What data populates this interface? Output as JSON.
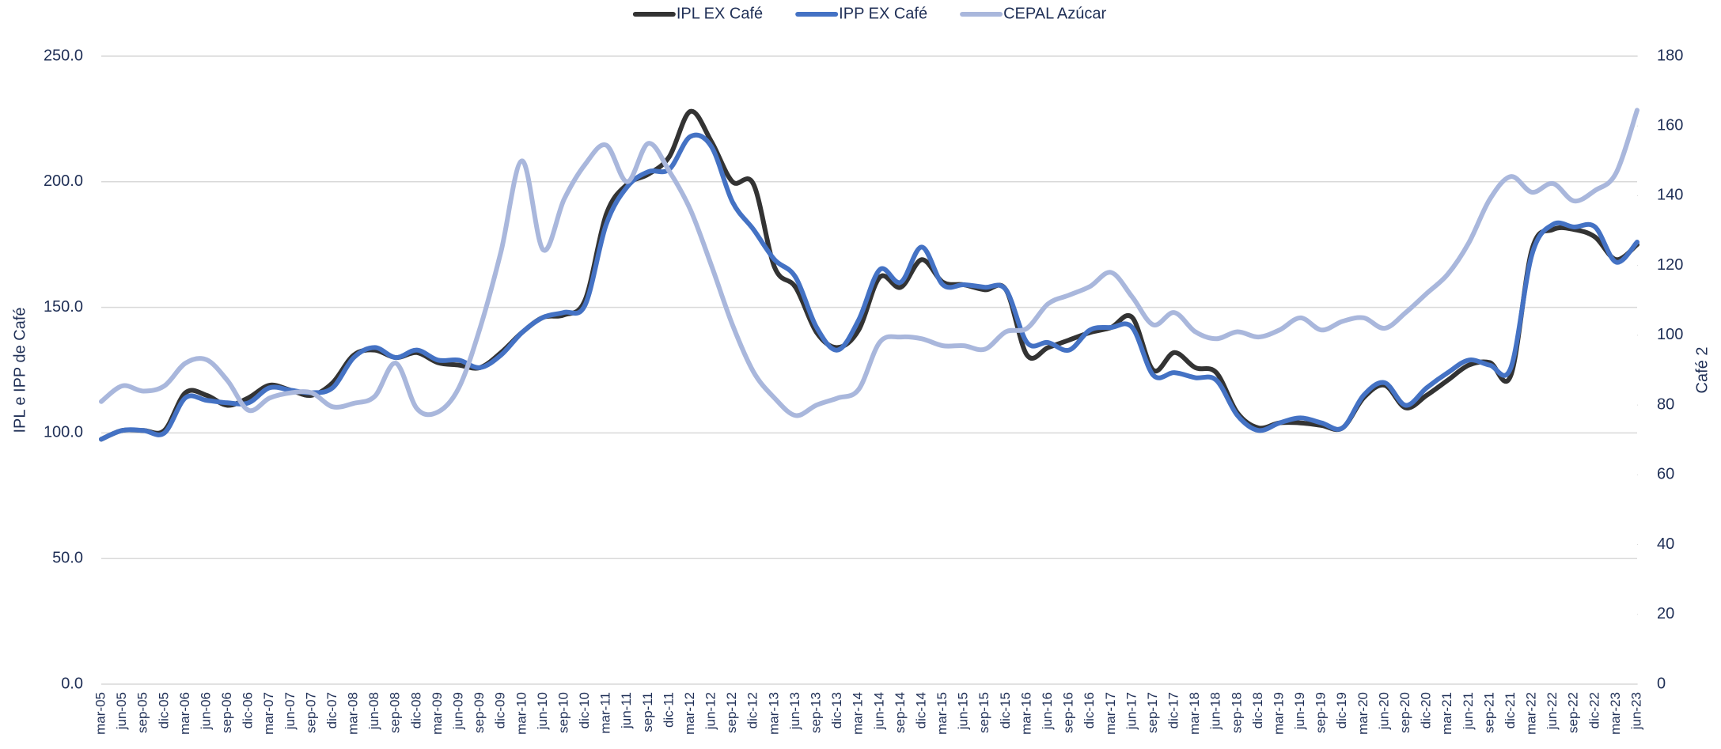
{
  "chart_data": {
    "type": "line",
    "categories": [
      "mar-05",
      "jun-05",
      "sep-05",
      "dic-05",
      "mar-06",
      "jun-06",
      "sep-06",
      "dic-06",
      "mar-07",
      "jun-07",
      "sep-07",
      "dic-07",
      "mar-08",
      "jun-08",
      "sep-08",
      "dic-08",
      "mar-09",
      "jun-09",
      "sep-09",
      "dic-09",
      "mar-10",
      "jun-10",
      "sep-10",
      "dic-10",
      "mar-11",
      "jun-11",
      "sep-11",
      "dic-11",
      "mar-12",
      "jun-12",
      "sep-12",
      "dic-12",
      "mar-13",
      "jun-13",
      "sep-13",
      "dic-13",
      "mar-14",
      "jun-14",
      "sep-14",
      "dic-14",
      "mar-15",
      "jun-15",
      "sep-15",
      "dic-15",
      "mar-16",
      "jun-16",
      "sep-16",
      "dic-16",
      "mar-17",
      "jun-17",
      "sep-17",
      "dic-17",
      "mar-18",
      "jun-18",
      "sep-18",
      "dic-18",
      "mar-19",
      "jun-19",
      "sep-19",
      "dic-19",
      "mar-20",
      "jun-20",
      "sep-20",
      "dic-20",
      "mar-21",
      "jun-21",
      "sep-21",
      "dic-21",
      "mar-22",
      "jun-22",
      "sep-22",
      "dic-22",
      "mar-23",
      "jun-23"
    ],
    "series": [
      {
        "name": "IPL EX Café",
        "color": "#333333",
        "values": [
          97.5,
          101,
          101,
          101,
          116,
          115,
          111,
          114,
          119,
          117,
          115,
          120,
          131,
          133,
          130,
          132,
          128,
          127,
          126,
          132,
          140,
          146,
          147,
          153,
          187,
          199,
          203,
          210,
          228,
          216,
          200,
          199,
          166,
          158,
          140,
          134,
          141,
          162,
          158,
          169,
          160,
          159,
          157,
          157,
          131,
          134,
          137,
          140,
          142,
          146,
          125,
          132,
          126,
          124,
          108,
          102,
          104,
          104,
          103,
          102,
          114,
          119,
          110,
          115,
          121,
          127,
          128,
          123,
          173,
          181,
          181,
          178,
          169,
          175
        ]
      },
      {
        "name": "IPP EX Café",
        "color": "#4472c4",
        "values": [
          97.5,
          101,
          101,
          100,
          114,
          113,
          112,
          112,
          118,
          117,
          116,
          118,
          130,
          134,
          130,
          133,
          129,
          129,
          126,
          131,
          140,
          146,
          148,
          151,
          183,
          198,
          204,
          205,
          218,
          214,
          192,
          181,
          169,
          162,
          142,
          133,
          145,
          165,
          160,
          174,
          159,
          159,
          158,
          157,
          136,
          136,
          133,
          141,
          142,
          142,
          123,
          124,
          122,
          121,
          107,
          101,
          104,
          106,
          104,
          102,
          115,
          120,
          111,
          118,
          124,
          129,
          127,
          126,
          171,
          183,
          182,
          182,
          168,
          176
        ]
      },
      {
        "name": "CEPAL Azúcar",
        "color": "#a9b7dc",
        "axis": "y2",
        "values": [
          81,
          85.5,
          84,
          85.5,
          92,
          93,
          87,
          78.5,
          82,
          83.5,
          83.5,
          79.5,
          80.5,
          82.5,
          92,
          79,
          78,
          85,
          102,
          124,
          150,
          124.5,
          139,
          149,
          154.5,
          144,
          155,
          147,
          136,
          120,
          103,
          89.5,
          82,
          77,
          80,
          82,
          84.5,
          98,
          99.5,
          99,
          97,
          97,
          96,
          101,
          102,
          109,
          111.5,
          114,
          118,
          111,
          103,
          106.5,
          101,
          99,
          101,
          99.5,
          101.5,
          105,
          101.5,
          104,
          105,
          102,
          106.5,
          112,
          117.5,
          126.5,
          139,
          145.5,
          141,
          143.5,
          138.5,
          141.5,
          146.5,
          164.5
        ]
      }
    ],
    "ylabel": "IPL e IPP de Café",
    "y2label": "Café 2",
    "ylim": [
      0,
      250
    ],
    "yticks": [
      {
        "value": 0,
        "label": "0.0"
      },
      {
        "value": 50,
        "label": "50.0"
      },
      {
        "value": 100,
        "label": "100.0"
      },
      {
        "value": 150,
        "label": "150.0"
      },
      {
        "value": 200,
        "label": "200.0"
      },
      {
        "value": 250,
        "label": "250.0"
      }
    ],
    "y2lim": [
      0,
      180
    ],
    "y2ticks": [
      0,
      20,
      40,
      60,
      80,
      100,
      120,
      140,
      160,
      180
    ],
    "grid": true,
    "legend": "top"
  }
}
